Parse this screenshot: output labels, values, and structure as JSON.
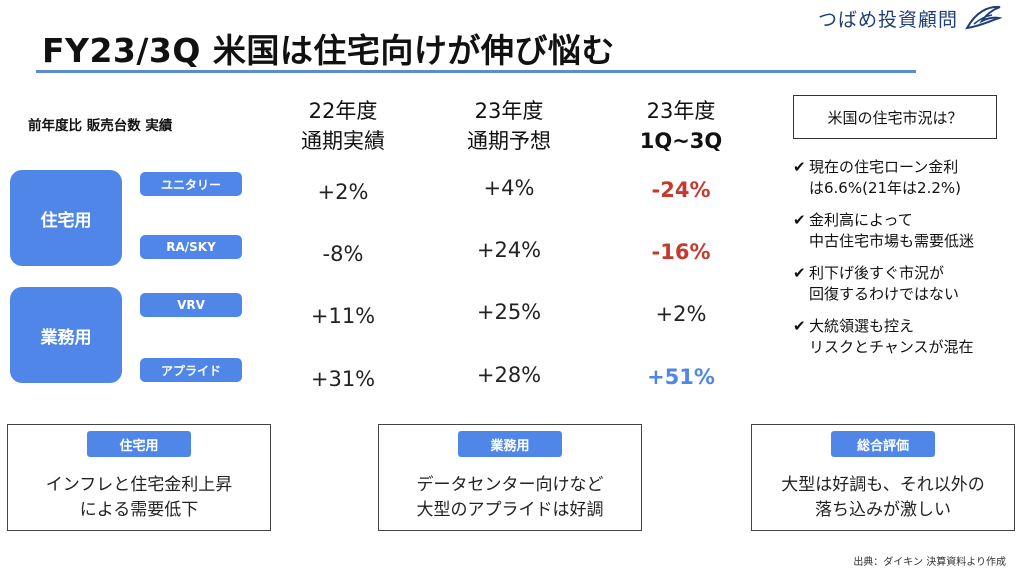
{
  "header": {
    "title": "FY23/3Q 米国は住宅向けが伸び悩む",
    "brand": "つばめ投資顧問",
    "brand_logo": "swallow-logo"
  },
  "table": {
    "subtitle": "前年度比 販売台数 実績",
    "columns": [
      {
        "line1": "22年度",
        "line2": "通期実績"
      },
      {
        "line1": "23年度",
        "line2": "通期予想"
      },
      {
        "line1": "23年度",
        "line2": "1Q~3Q"
      }
    ],
    "groups": [
      {
        "label": "住宅用"
      },
      {
        "label": "業務用"
      }
    ],
    "rows": [
      {
        "label": "ユニタリー",
        "values": [
          "+2%",
          "+4%",
          "-24%"
        ]
      },
      {
        "label": "RA/SKY",
        "values": [
          "-8%",
          "+24%",
          "-16%"
        ]
      },
      {
        "label": "VRV",
        "values": [
          "+11%",
          "+25%",
          "+2%"
        ]
      },
      {
        "label": "アプライド",
        "values": [
          "+31%",
          "+28%",
          "+51%"
        ]
      }
    ],
    "colors": {
      "negative": "#c43a2f",
      "positive_highlight": "#4f86e8",
      "pill": "#4f86e8"
    }
  },
  "market": {
    "heading": "米国の住宅市況は？",
    "check": "✔",
    "items": [
      {
        "lines": [
          "現在の住宅ローン金利",
          "は6.6%(21年は2.2%)"
        ]
      },
      {
        "lines": [
          "金利高によって",
          "中古住宅市場も需要低迷"
        ]
      },
      {
        "lines": [
          "利下げ後すぐ市況が",
          "回復するわけではない"
        ]
      },
      {
        "lines": [
          "大統領選も控え",
          "リスクとチャンスが混在"
        ]
      }
    ]
  },
  "summary": [
    {
      "tag": "住宅用",
      "lines": [
        "インフレと住宅金利上昇",
        "による需要低下"
      ]
    },
    {
      "tag": "業務用",
      "lines": [
        "データセンター向けなど",
        "大型のアプライドは好調"
      ]
    },
    {
      "tag": "総合評価",
      "lines": [
        "大型は好調も、それ以外の",
        "落ち込みが激しい"
      ]
    }
  ],
  "footer": {
    "source": "出典：ダイキン 決算資料より作成"
  }
}
